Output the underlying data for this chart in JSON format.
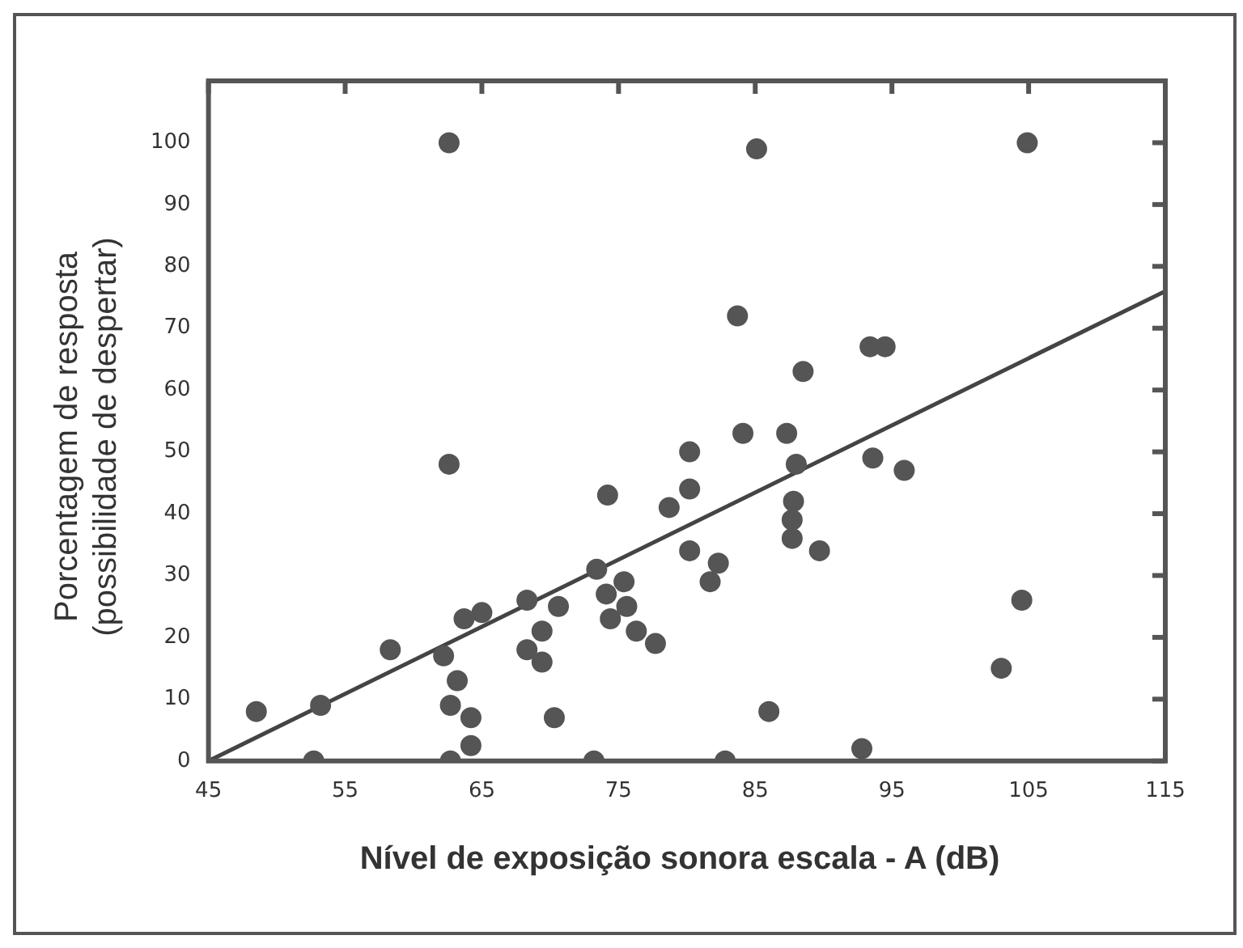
{
  "chart_data": {
    "type": "scatter",
    "xlabel": "Nível de exposição sonora escala - A (dB)",
    "ylabel": "Porcentagem de resposta\n(possibilidade de despertar)",
    "xlim": [
      45,
      115
    ],
    "ylim": [
      0,
      110
    ],
    "xticks": [
      45,
      55,
      65,
      75,
      85,
      95,
      105,
      115
    ],
    "yticks": [
      0,
      10,
      20,
      30,
      40,
      50,
      60,
      70,
      80,
      90,
      100
    ],
    "grid": false,
    "legend": false,
    "series": [
      {
        "type": "scatter",
        "marker": "circle",
        "color": "#555555",
        "x": [
          48.5,
          53.2,
          52.7,
          58.3,
          62.2,
          62.7,
          63.2,
          63.7,
          65,
          64.2,
          64.2,
          62.7,
          62.6,
          62.6,
          68.3,
          68.3,
          69.4,
          69.4,
          70.6,
          70.3,
          73.4,
          73.2,
          74.2,
          74.1,
          74.4,
          75.4,
          75.6,
          76.3,
          77.7,
          78.7,
          80.2,
          80.2,
          80.2,
          82.3,
          81.7,
          82.8,
          83.7,
          84.1,
          85.1,
          86,
          87.3,
          88,
          87.8,
          87.7,
          87.7,
          88.5,
          89.7,
          93.4,
          94.5,
          93.6,
          95.9,
          92.8,
          103,
          104.5,
          104.9
        ],
        "values": [
          8,
          9,
          0,
          18,
          17,
          9,
          13,
          23,
          24,
          7,
          2.5,
          0,
          100,
          48,
          26,
          18,
          21,
          16,
          25,
          7,
          31,
          0,
          43,
          27,
          23,
          29,
          25,
          21,
          19,
          41,
          44,
          50,
          34,
          32,
          29,
          0,
          72,
          53,
          99,
          8,
          53,
          48,
          42,
          39,
          36,
          63,
          34,
          67,
          67,
          49,
          47,
          2,
          15,
          26,
          100
        ]
      },
      {
        "type": "line",
        "color": "#444444",
        "x": [
          45,
          115
        ],
        "values": [
          0,
          76
        ]
      }
    ]
  }
}
